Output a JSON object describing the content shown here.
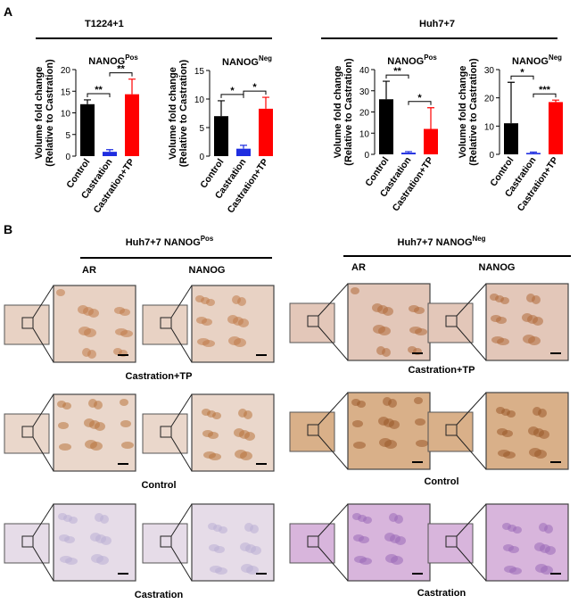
{
  "panel_a": {
    "label": "A",
    "groups": [
      "T1224+1",
      "Huh7+7"
    ]
  },
  "chart_data": [
    {
      "type": "bar",
      "title": "NANOG",
      "title_sup": "Pos",
      "ylabel": [
        "Volume fold change",
        "(Relative to Castration)"
      ],
      "categories": [
        "Control",
        "Castration",
        "Castration+TP"
      ],
      "values": [
        12,
        1,
        14.3
      ],
      "errors": [
        1,
        0.5,
        3.5
      ],
      "colors": [
        "#000000",
        "#1f2ee0",
        "#ff0000"
      ],
      "ylim": [
        0,
        20
      ],
      "yticks": [
        0,
        5,
        10,
        15,
        20
      ],
      "significance": [
        "**",
        "**"
      ]
    },
    {
      "type": "bar",
      "title": "NANOG",
      "title_sup": "Neg",
      "ylabel": [
        "Volume fold change",
        "(Relative to Castration)"
      ],
      "categories": [
        "Control",
        "Castration",
        "Castration+TP"
      ],
      "values": [
        7,
        1.3,
        8.3
      ],
      "errors": [
        2.7,
        0.6,
        2
      ],
      "colors": [
        "#000000",
        "#1f2ee0",
        "#ff0000"
      ],
      "ylim": [
        0,
        15
      ],
      "yticks": [
        0,
        5,
        10,
        15
      ],
      "significance": [
        "*",
        "*"
      ]
    },
    {
      "type": "bar",
      "title": "NANOG",
      "title_sup": "Pos",
      "ylabel": [
        "Volume fold change",
        "(Relative to Castration)"
      ],
      "categories": [
        "Control",
        "Castration",
        "Castration+TP"
      ],
      "values": [
        26,
        0.8,
        12
      ],
      "errors": [
        8.5,
        0.5,
        10
      ],
      "colors": [
        "#000000",
        "#1f2ee0",
        "#ff0000"
      ],
      "ylim": [
        0,
        40
      ],
      "yticks": [
        0,
        10,
        20,
        30,
        40
      ],
      "significance": [
        "**",
        "*"
      ]
    },
    {
      "type": "bar",
      "title": "NANOG",
      "title_sup": "Neg",
      "ylabel": [
        "Volume fold change",
        "(Relative to Castration)"
      ],
      "categories": [
        "Control",
        "Castration",
        "Castration+TP"
      ],
      "values": [
        11,
        0.5,
        18.5
      ],
      "errors": [
        14.5,
        0.3,
        0.7
      ],
      "colors": [
        "#000000",
        "#1f2ee0",
        "#ff0000"
      ],
      "ylim": [
        0,
        30
      ],
      "yticks": [
        0,
        10,
        20,
        30
      ],
      "significance": [
        "*",
        "***"
      ]
    }
  ],
  "panel_b": {
    "label": "B",
    "blocks": [
      {
        "title": "Huh7+7 NANOG",
        "title_sup": "Pos",
        "columns": [
          "AR",
          "NANOG"
        ],
        "rows": [
          "Castration+TP",
          "Control",
          "Castration"
        ]
      },
      {
        "title": "Huh7+7 NANOG",
        "title_sup": "Neg",
        "columns": [
          "AR",
          "NANOG"
        ],
        "rows": [
          "Castration+TP",
          "Control",
          "Castration"
        ]
      }
    ]
  }
}
